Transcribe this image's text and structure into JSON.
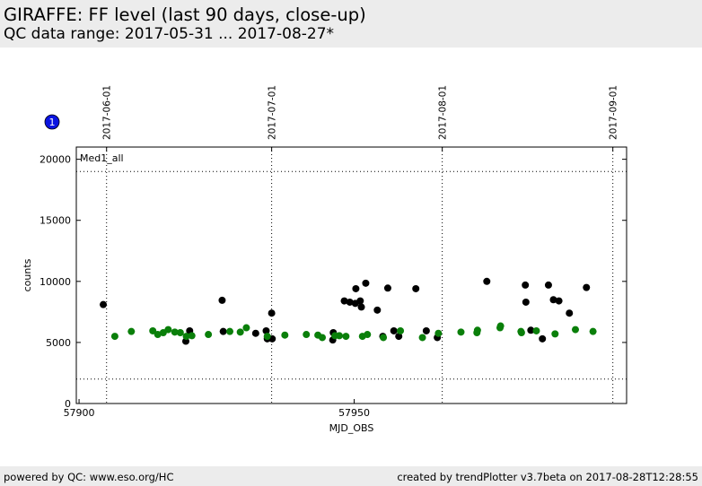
{
  "header": {
    "title": "GIRAFFE: FF level (last 90 days, close-up)",
    "subtitle": "QC data range: 2017-05-31 ... 2017-08-27*"
  },
  "footer": {
    "left": "powered by QC: www.eso.org/HC",
    "right": "created by trendPlotter v3.7beta on 2017-08-28T12:28:55"
  },
  "badge": {
    "label": "1",
    "color": "#0a14e0"
  },
  "chart_data": {
    "type": "scatter",
    "title": "",
    "xlabel": "MJD_OBS",
    "ylabel": "counts",
    "xlim": [
      57899.5,
      57999.5
    ],
    "ylim": [
      0,
      21000
    ],
    "xticks": [
      57900,
      57950
    ],
    "xtick_labels": [
      "57900",
      "57950"
    ],
    "yticks": [
      0,
      5000,
      10000,
      15000,
      20000
    ],
    "ytick_labels": [
      "0",
      "5000",
      "10000",
      "15000",
      "20000"
    ],
    "date_ticks": [
      {
        "x": 57905.0,
        "label": "2017-06-01"
      },
      {
        "x": 57935.0,
        "label": "2017-07-01"
      },
      {
        "x": 57966.0,
        "label": "2017-08-01"
      },
      {
        "x": 57997.0,
        "label": "2017-09-01"
      }
    ],
    "threshold_lines": [
      2000,
      19000
    ],
    "grid": false,
    "panel_label": "Med1_all",
    "series": [
      {
        "color": "#000000",
        "points": [
          [
            57904.4,
            8100
          ],
          [
            57919.4,
            5100
          ],
          [
            57920.1,
            5950
          ],
          [
            57926.0,
            8450
          ],
          [
            57926.2,
            5900
          ],
          [
            57932.1,
            5750
          ],
          [
            57934.0,
            5950
          ],
          [
            57934.2,
            5300
          ],
          [
            57935.0,
            7400
          ],
          [
            57935.1,
            5300
          ],
          [
            57946.1,
            5200
          ],
          [
            57946.2,
            5800
          ],
          [
            57948.2,
            8400
          ],
          [
            57949.2,
            8300
          ],
          [
            57950.2,
            8200
          ],
          [
            57950.3,
            9400
          ],
          [
            57951.1,
            8400
          ],
          [
            57951.3,
            7900
          ],
          [
            57952.1,
            9850
          ],
          [
            57954.2,
            7650
          ],
          [
            57955.2,
            5500
          ],
          [
            57956.1,
            9450
          ],
          [
            57957.2,
            5950
          ],
          [
            57958.1,
            5500
          ],
          [
            57961.2,
            9400
          ],
          [
            57963.1,
            5950
          ],
          [
            57965.1,
            5400
          ],
          [
            57974.1,
            10000
          ],
          [
            57981.1,
            9700
          ],
          [
            57981.2,
            8300
          ],
          [
            57982.1,
            6000
          ],
          [
            57984.2,
            5300
          ],
          [
            57985.3,
            9700
          ],
          [
            57986.2,
            8500
          ],
          [
            57987.2,
            8400
          ],
          [
            57989.1,
            7400
          ],
          [
            57992.2,
            9500
          ]
        ]
      },
      {
        "color": "#0a7f0a",
        "points": [
          [
            57906.5,
            5500
          ],
          [
            57909.5,
            5900
          ],
          [
            57913.4,
            5950
          ],
          [
            57914.3,
            5650
          ],
          [
            57915.3,
            5800
          ],
          [
            57916.2,
            6050
          ],
          [
            57917.4,
            5850
          ],
          [
            57918.4,
            5800
          ],
          [
            57919.5,
            5500
          ],
          [
            57920.5,
            5550
          ],
          [
            57923.5,
            5650
          ],
          [
            57927.4,
            5900
          ],
          [
            57929.3,
            5850
          ],
          [
            57930.4,
            6200
          ],
          [
            57934.2,
            5500
          ],
          [
            57937.4,
            5600
          ],
          [
            57941.3,
            5650
          ],
          [
            57943.4,
            5600
          ],
          [
            57944.2,
            5400
          ],
          [
            57946.5,
            5550
          ],
          [
            57947.3,
            5550
          ],
          [
            57948.5,
            5500
          ],
          [
            57951.5,
            5500
          ],
          [
            57952.4,
            5650
          ],
          [
            57955.3,
            5400
          ],
          [
            57958.4,
            5950
          ],
          [
            57962.4,
            5400
          ],
          [
            57965.3,
            5750
          ],
          [
            57969.4,
            5850
          ],
          [
            57972.3,
            5800
          ],
          [
            57972.4,
            6000
          ],
          [
            57976.5,
            6200
          ],
          [
            57976.6,
            6350
          ],
          [
            57980.3,
            5900
          ],
          [
            57980.4,
            5800
          ],
          [
            57983.1,
            5950
          ],
          [
            57986.5,
            5700
          ],
          [
            57990.2,
            6050
          ],
          [
            57993.4,
            5900
          ]
        ]
      }
    ]
  }
}
